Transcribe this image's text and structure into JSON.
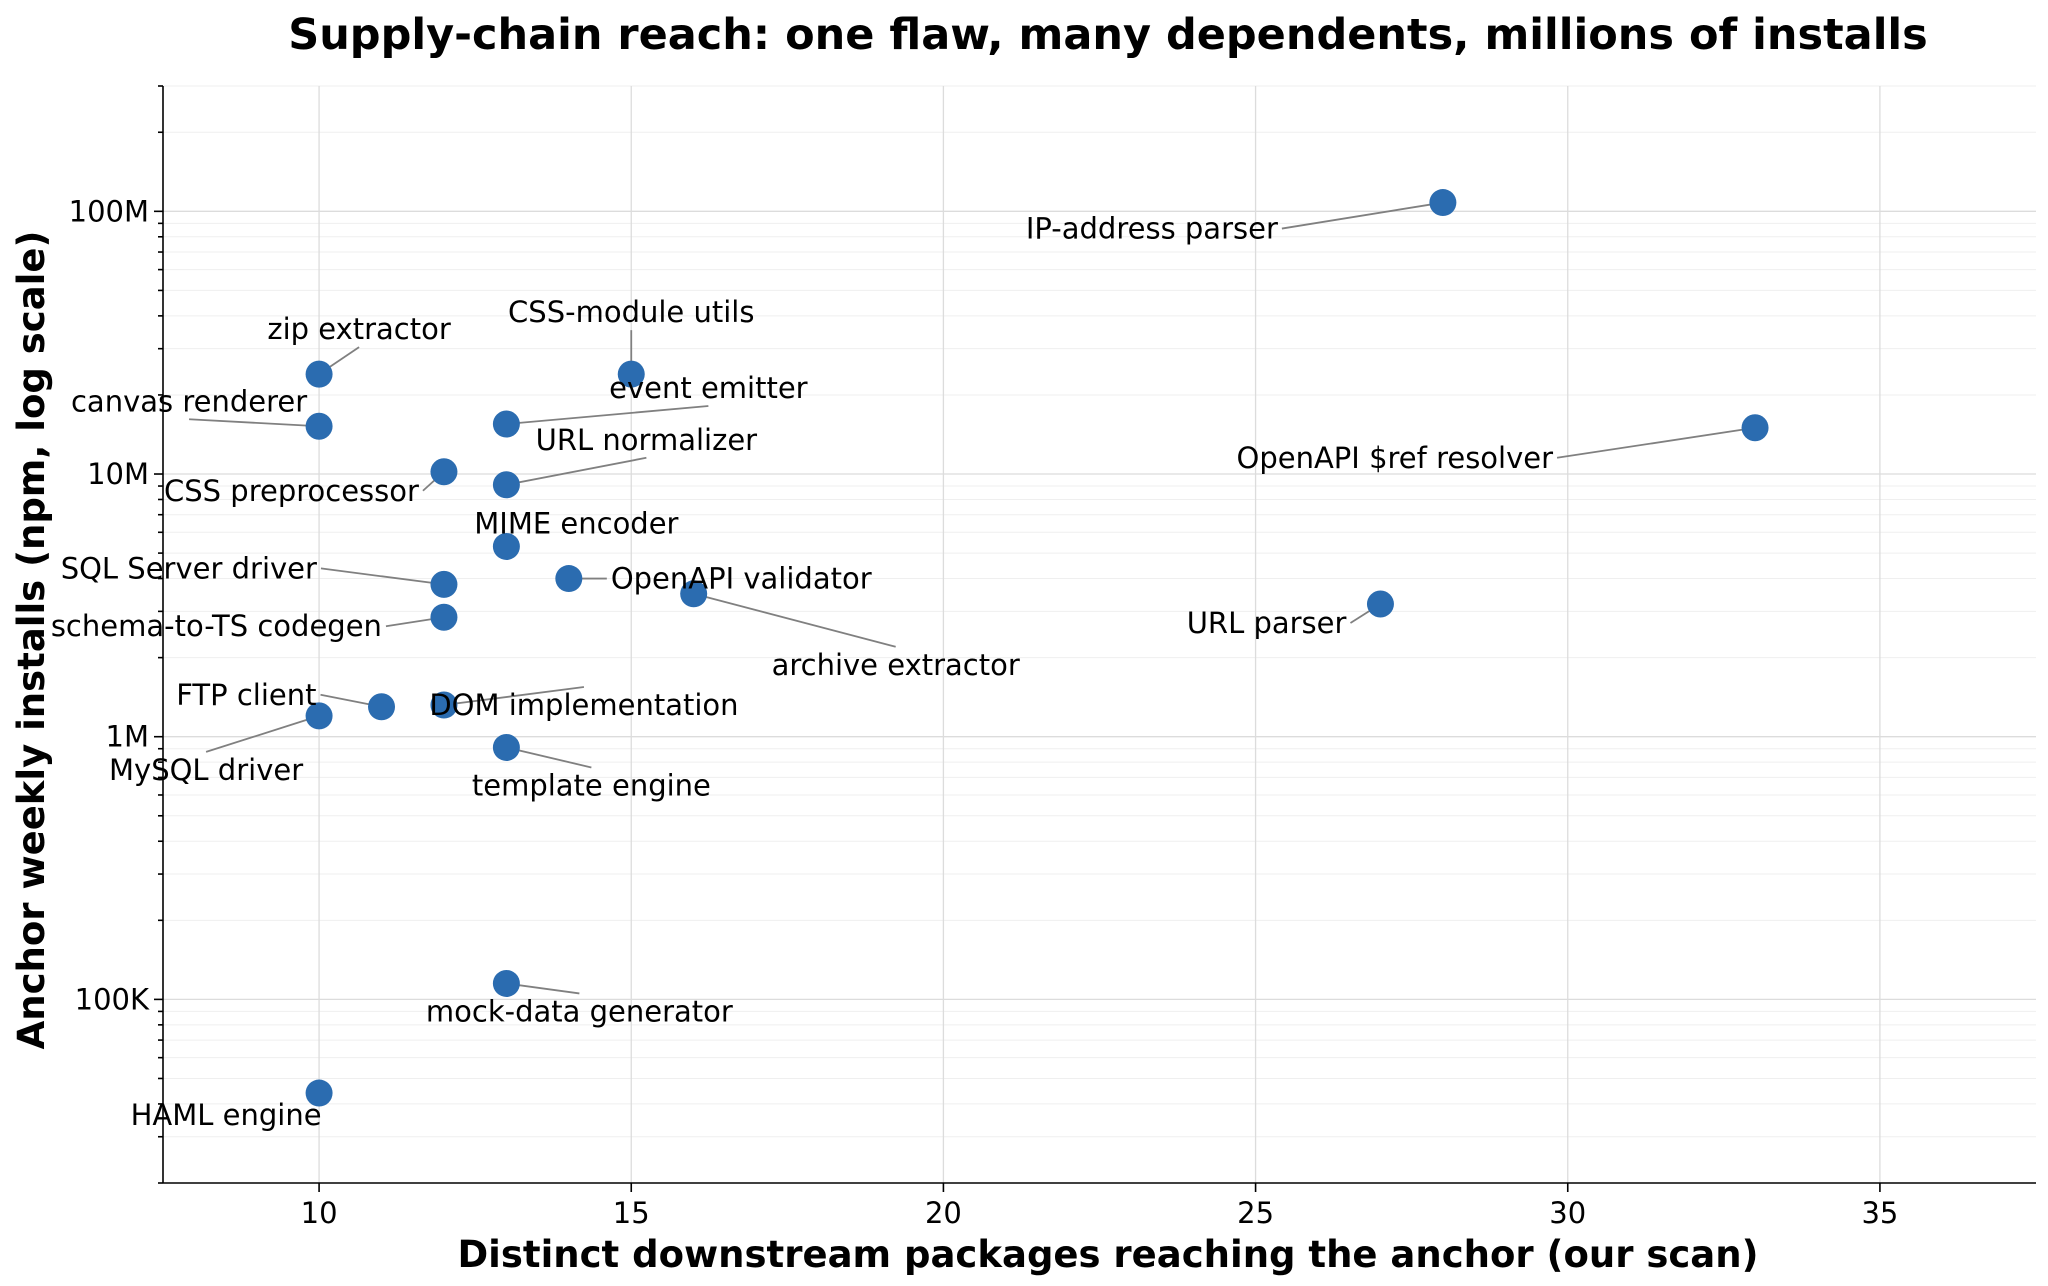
{
  "chart_data": {
    "type": "scatter",
    "title": "Supply-chain reach: one flaw, many dependents, millions of installs",
    "xlabel": "Distinct downstream packages reaching the anchor (our scan)",
    "ylabel": "Anchor weekly installs (npm, log scale)",
    "xlim": [
      7.5,
      37.5
    ],
    "ylim": [
      20000,
      300000000
    ],
    "y_scale": "log",
    "grid": true,
    "marker_color": "#2b6cb0",
    "x_ticks": [
      {
        "value": 10,
        "label": "10"
      },
      {
        "value": 15,
        "label": "15"
      },
      {
        "value": 20,
        "label": "20"
      },
      {
        "value": 25,
        "label": "25"
      },
      {
        "value": 30,
        "label": "30"
      },
      {
        "value": 35,
        "label": "35"
      }
    ],
    "y_ticks": [
      {
        "value": 100000,
        "label": "100K"
      },
      {
        "value": 1000000,
        "label": "1M"
      },
      {
        "value": 10000000,
        "label": "10M"
      },
      {
        "value": 100000000,
        "label": "100M"
      }
    ],
    "points": [
      {
        "label": "IP-address parser",
        "x": 28,
        "y": 108000000
      },
      {
        "label": "CSS-module utils",
        "x": 15,
        "y": 24000000
      },
      {
        "label": "zip extractor",
        "x": 10,
        "y": 24000000
      },
      {
        "label": "event emitter",
        "x": 13,
        "y": 15500000
      },
      {
        "label": "canvas renderer",
        "x": 10,
        "y": 15200000
      },
      {
        "label": "OpenAPI $ref resolver",
        "x": 33,
        "y": 15000000
      },
      {
        "label": "CSS preprocessor",
        "x": 12,
        "y": 10200000
      },
      {
        "label": "URL normalizer",
        "x": 13,
        "y": 9100000
      },
      {
        "label": "MIME encoder",
        "x": 13,
        "y": 5300000
      },
      {
        "label": "OpenAPI validator",
        "x": 14,
        "y": 4000000
      },
      {
        "label": "SQL Server driver",
        "x": 12,
        "y": 3800000
      },
      {
        "label": "archive extractor",
        "x": 16,
        "y": 3500000
      },
      {
        "label": "URL parser",
        "x": 27,
        "y": 3200000
      },
      {
        "label": "schema-to-TS codegen",
        "x": 12,
        "y": 2850000
      },
      {
        "label": "FTP client",
        "x": 11,
        "y": 1300000
      },
      {
        "label": "DOM implementation",
        "x": 12,
        "y": 1320000
      },
      {
        "label": "MySQL driver",
        "x": 10,
        "y": 1200000
      },
      {
        "label": "template engine",
        "x": 13,
        "y": 910000
      },
      {
        "label": "mock-data generator",
        "x": 13,
        "y": 115000
      },
      {
        "label": "HAML engine",
        "x": 10,
        "y": 44000
      }
    ]
  }
}
